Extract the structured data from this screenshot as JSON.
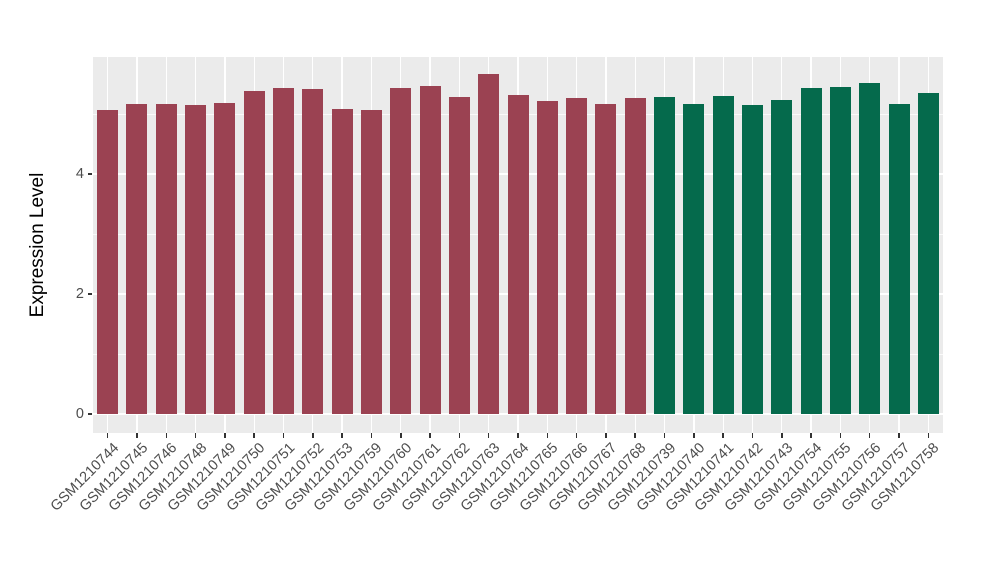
{
  "chart_data": {
    "type": "bar",
    "title": "",
    "xlabel": "",
    "ylabel": "Expression Level",
    "ylim": [
      0,
      5.95
    ],
    "yticks": [
      0,
      2,
      4
    ],
    "minor_grid_values": [
      1,
      3,
      5
    ],
    "grid": true,
    "legend": null,
    "categories": [
      "GSM1210744",
      "GSM1210745",
      "GSM1210746",
      "GSM1210748",
      "GSM1210749",
      "GSM1210750",
      "GSM1210751",
      "GSM1210752",
      "GSM1210753",
      "GSM1210759",
      "GSM1210760",
      "GSM1210761",
      "GSM1210762",
      "GSM1210763",
      "GSM1210764",
      "GSM1210765",
      "GSM1210766",
      "GSM1210767",
      "GSM1210768",
      "GSM1210739",
      "GSM1210740",
      "GSM1210741",
      "GSM1210742",
      "GSM1210743",
      "GSM1210754",
      "GSM1210755",
      "GSM1210756",
      "GSM1210757",
      "GSM1210758"
    ],
    "values": [
      5.07,
      5.17,
      5.17,
      5.15,
      5.19,
      5.39,
      5.43,
      5.41,
      5.08,
      5.06,
      5.43,
      5.46,
      5.29,
      5.67,
      5.32,
      5.21,
      5.27,
      5.17,
      5.26,
      5.29,
      5.16,
      5.3,
      5.15,
      5.24,
      5.43,
      5.45,
      5.52,
      5.16,
      5.35
    ],
    "bar_groups": [
      "group1",
      "group1",
      "group1",
      "group1",
      "group1",
      "group1",
      "group1",
      "group1",
      "group1",
      "group1",
      "group1",
      "group1",
      "group1",
      "group1",
      "group1",
      "group1",
      "group1",
      "group1",
      "group1",
      "group2",
      "group2",
      "group2",
      "group2",
      "group2",
      "group2",
      "group2",
      "group2",
      "group2",
      "group2"
    ],
    "group_colors": {
      "group1": "#9B4252",
      "group2": "#056A4C"
    },
    "colors": {
      "panel_background": "#EBEBEB",
      "figure_background": "#FFFFFF",
      "gridline": "#FFFFFF",
      "tick_mark": "#333333",
      "axis_text": "#4D4D4D",
      "axis_title": "#000000"
    }
  }
}
